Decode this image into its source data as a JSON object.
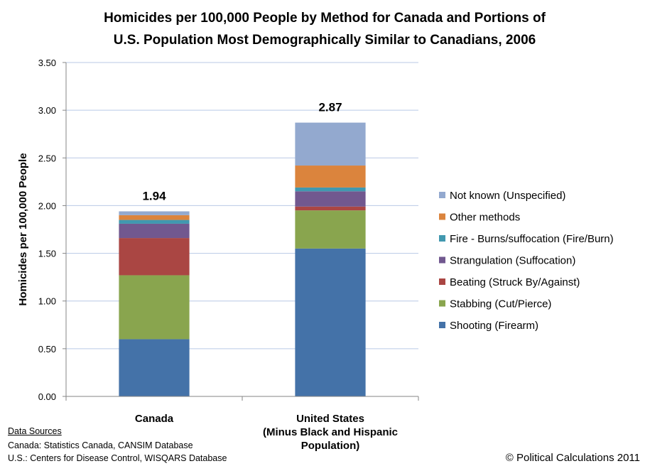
{
  "chart_data": {
    "type": "bar",
    "stacked": true,
    "title": "Homicides per 100,000 People by Method for Canada and Portions of U.S. Population Most Demographically Similar to Canadians, 2006",
    "title_lines": [
      "Homicides per 100,000 People by Method for Canada and Portions of",
      "U.S. Population Most Demographically Similar to Canadians, 2006"
    ],
    "xlabel": "",
    "ylabel": "Homicides per 100,000 People",
    "ylim": [
      0,
      3.5
    ],
    "yticks": [
      0,
      0.5,
      1.0,
      1.5,
      2.0,
      2.5,
      3.0,
      3.5
    ],
    "ytick_labels": [
      "0.00",
      "0.50",
      "1.00",
      "1.50",
      "2.00",
      "2.50",
      "3.00",
      "3.50"
    ],
    "grid": true,
    "legend_position": "right",
    "categories": [
      "Canada",
      "United States (Minus Black and Hispanic Population)"
    ],
    "category_label_lines": [
      [
        "Canada"
      ],
      [
        "United States",
        "(Minus Black and Hispanic",
        "Population)"
      ]
    ],
    "totals": [
      1.94,
      2.87
    ],
    "total_labels": [
      "1.94",
      "2.87"
    ],
    "series": [
      {
        "name": "Shooting (Firearm)",
        "color": "#4472a8",
        "values": [
          0.6,
          1.55
        ]
      },
      {
        "name": "Stabbing (Cut/Pierce)",
        "color": "#89a54e",
        "values": [
          0.67,
          0.4
        ]
      },
      {
        "name": "Beating (Struck By/Against)",
        "color": "#aa4643",
        "values": [
          0.39,
          0.04
        ]
      },
      {
        "name": "Strangulation (Suffocation)",
        "color": "#71588f",
        "values": [
          0.15,
          0.16
        ]
      },
      {
        "name": "Fire - Burns/suffocation (Fire/Burn)",
        "color": "#4198af",
        "values": [
          0.04,
          0.04
        ]
      },
      {
        "name": "Other methods",
        "color": "#db843d",
        "values": [
          0.05,
          0.23
        ]
      },
      {
        "name": "Not known (Unspecified)",
        "color": "#93a9cf",
        "values": [
          0.04,
          0.45
        ]
      }
    ]
  },
  "sources": {
    "heading": "Data Sources",
    "lines": [
      "Canada: Statistics Canada, CANSIM Database",
      "U.S.: Centers for Disease Control, WISQARS Database"
    ]
  },
  "copyright": "© Political Calculations 2011"
}
